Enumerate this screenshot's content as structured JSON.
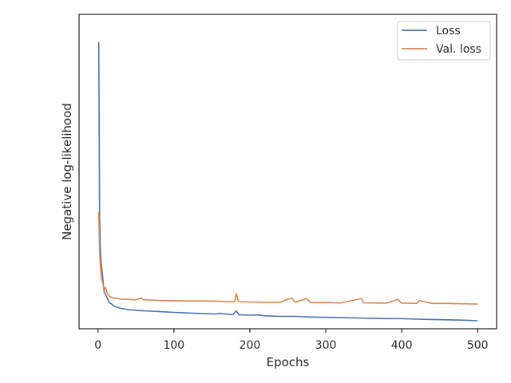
{
  "chart_data": {
    "type": "line",
    "title": "",
    "xlabel": "Epochs",
    "ylabel": "Negative log-likelihood",
    "xlim": [
      -25,
      525
    ],
    "ylim": [
      -0.2,
      10.0
    ],
    "x_ticks": [
      0,
      100,
      200,
      300,
      400,
      500
    ],
    "x_tick_labels": [
      "0",
      "100",
      "200",
      "300",
      "400",
      "500"
    ],
    "y_tick_labels": [],
    "grid": false,
    "legend_position": "top-right",
    "series": [
      {
        "name": "Loss",
        "color": "#4c72b0",
        "points": [
          [
            1,
            9.1
          ],
          [
            2,
            3.5
          ],
          [
            3,
            2.4
          ],
          [
            4,
            1.95
          ],
          [
            5,
            1.75
          ],
          [
            6,
            1.5
          ],
          [
            7,
            1.25
          ],
          [
            8,
            1.0
          ],
          [
            10,
            0.9
          ],
          [
            12,
            0.8
          ],
          [
            15,
            0.65
          ],
          [
            18,
            0.6
          ],
          [
            20,
            0.55
          ],
          [
            25,
            0.5
          ],
          [
            30,
            0.46
          ],
          [
            40,
            0.42
          ],
          [
            50,
            0.4
          ],
          [
            60,
            0.38
          ],
          [
            70,
            0.37
          ],
          [
            80,
            0.36
          ],
          [
            100,
            0.33
          ],
          [
            120,
            0.31
          ],
          [
            140,
            0.29
          ],
          [
            155,
            0.28
          ],
          [
            160,
            0.3
          ],
          [
            170,
            0.27
          ],
          [
            178,
            0.26
          ],
          [
            182,
            0.38
          ],
          [
            186,
            0.25
          ],
          [
            200,
            0.24
          ],
          [
            210,
            0.25
          ],
          [
            220,
            0.22
          ],
          [
            240,
            0.2
          ],
          [
            260,
            0.2
          ],
          [
            280,
            0.18
          ],
          [
            300,
            0.17
          ],
          [
            320,
            0.16
          ],
          [
            340,
            0.15
          ],
          [
            360,
            0.14
          ],
          [
            380,
            0.13
          ],
          [
            400,
            0.13
          ],
          [
            420,
            0.11
          ],
          [
            440,
            0.1
          ],
          [
            460,
            0.09
          ],
          [
            480,
            0.08
          ],
          [
            500,
            0.06
          ]
        ]
      },
      {
        "name": "Val. loss",
        "color": "#dd8452",
        "points": [
          [
            1,
            3.6
          ],
          [
            2,
            2.3
          ],
          [
            3,
            1.9
          ],
          [
            4,
            1.6
          ],
          [
            5,
            1.4
          ],
          [
            6,
            1.3
          ],
          [
            7,
            1.2
          ],
          [
            8,
            1.05
          ],
          [
            10,
            1.15
          ],
          [
            12,
            0.95
          ],
          [
            15,
            0.85
          ],
          [
            18,
            0.82
          ],
          [
            20,
            0.8
          ],
          [
            25,
            0.78
          ],
          [
            30,
            0.76
          ],
          [
            40,
            0.75
          ],
          [
            50,
            0.74
          ],
          [
            57,
            0.8
          ],
          [
            60,
            0.74
          ],
          [
            80,
            0.72
          ],
          [
            100,
            0.71
          ],
          [
            120,
            0.7
          ],
          [
            140,
            0.7
          ],
          [
            160,
            0.69
          ],
          [
            180,
            0.68
          ],
          [
            182,
            0.95
          ],
          [
            185,
            0.68
          ],
          [
            200,
            0.67
          ],
          [
            220,
            0.66
          ],
          [
            240,
            0.66
          ],
          [
            255,
            0.8
          ],
          [
            260,
            0.66
          ],
          [
            275,
            0.78
          ],
          [
            280,
            0.65
          ],
          [
            300,
            0.65
          ],
          [
            320,
            0.64
          ],
          [
            347,
            0.78
          ],
          [
            350,
            0.64
          ],
          [
            380,
            0.63
          ],
          [
            395,
            0.75
          ],
          [
            400,
            0.63
          ],
          [
            420,
            0.62
          ],
          [
            423,
            0.72
          ],
          [
            440,
            0.62
          ],
          [
            460,
            0.62
          ],
          [
            480,
            0.61
          ],
          [
            500,
            0.6
          ]
        ]
      }
    ]
  }
}
